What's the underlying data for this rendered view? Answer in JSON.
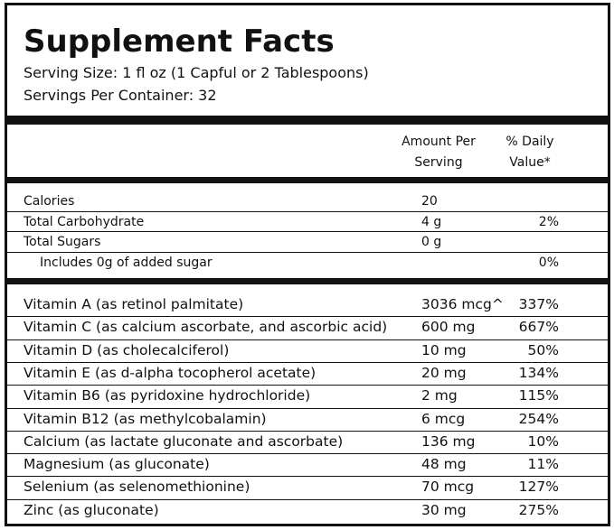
{
  "header": {
    "title": "Supplement Facts",
    "serving_size": "Serving Size: 1 fl oz (1 Capful or 2 Tablespoons)",
    "servings_per_container": "Servings Per Container: 32"
  },
  "columns": {
    "amount": [
      "Amount Per",
      "Serving"
    ],
    "dv": [
      "% Daily",
      "Value*"
    ]
  },
  "basic_rows": [
    {
      "name": "Calories",
      "amount": "20"
    },
    {
      "name": "Total Carbohydrate",
      "amount": "4 g",
      "dv": "2%"
    },
    {
      "name": "Total Sugars",
      "amount": "0 g"
    },
    {
      "name": "Includes 0g of added sugar",
      "dv": "0%"
    }
  ],
  "nutrient_rows": [
    {
      "name": "Vitamin A (as retinol palmitate)",
      "amount": "3036 mcg^",
      "dv": "337%"
    },
    {
      "name": "Vitamin C (as calcium ascorbate, and ascorbic acid)",
      "amount": "600 mg",
      "dv": "667%"
    },
    {
      "name": "Vitamin D (as cholecalciferol)",
      "amount": "10 mg",
      "dv": "50%"
    },
    {
      "name": "Vitamin E (as d-alpha tocopherol acetate)",
      "amount": "20 mg",
      "dv": "134%"
    },
    {
      "name": "Vitamin B6 (as pyridoxine hydrochloride)",
      "amount": "2 mg",
      "dv": "115%"
    },
    {
      "name": "Vitamin B12 (as methylcobalamin)",
      "amount": "6 mcg",
      "dv": "254%"
    },
    {
      "name": "Calcium (as lactate gluconate and ascorbate)",
      "amount": "136 mg",
      "dv": "10%"
    },
    {
      "name": "Magnesium (as gluconate)",
      "amount": "48 mg",
      "dv": "11%"
    },
    {
      "name": "Selenium (as selenomethionine)",
      "amount": "70 mcg",
      "dv": "127%"
    },
    {
      "name": "Zinc (as gluconate)",
      "amount": "30 mg",
      "dv": "275%"
    }
  ]
}
